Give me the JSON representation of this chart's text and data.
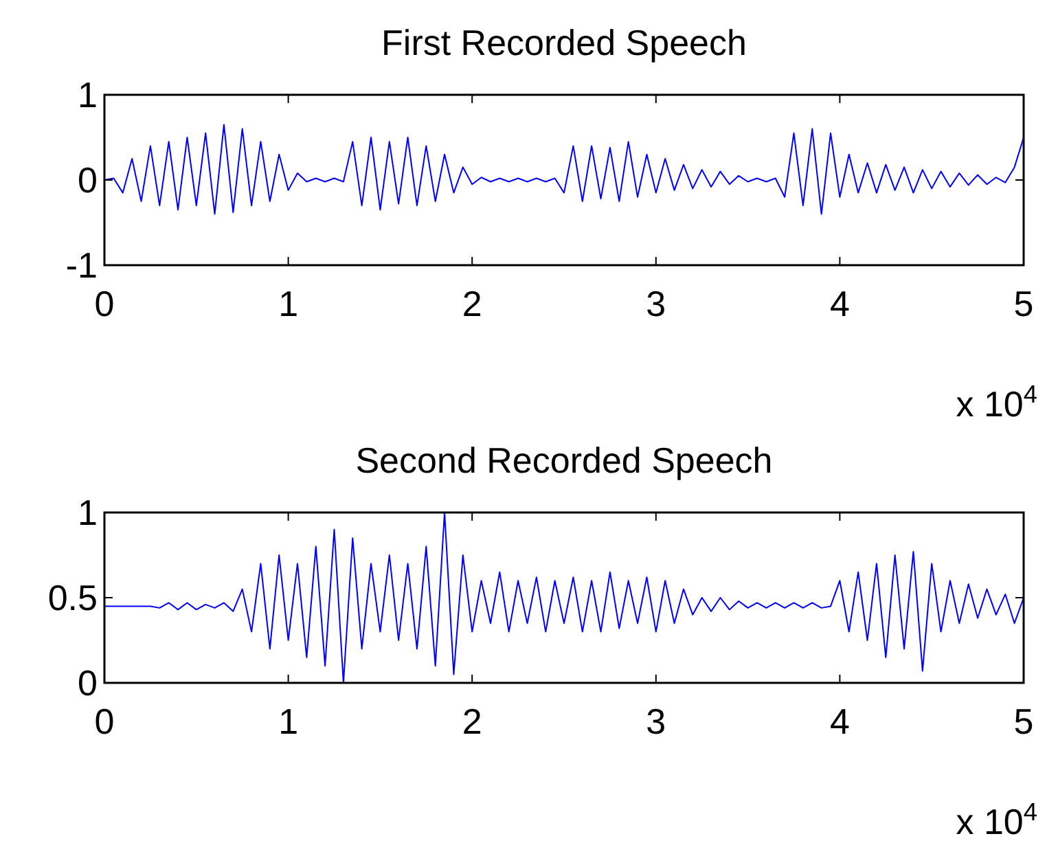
{
  "chart_data": [
    {
      "type": "line",
      "title": "First Recorded Speech",
      "annotations": [
        "x 10$^{4}$"
      ],
      "grid": false,
      "marker": "none",
      "line_style": "solid",
      "xlim": [
        0,
        5
      ],
      "xticks": [
        0,
        1,
        2,
        3,
        4,
        5
      ],
      "ylim": [
        -1,
        1
      ],
      "yticks": [
        -1,
        0,
        1
      ],
      "x": [
        0,
        0.05,
        0.1,
        0.15,
        0.2,
        0.25,
        0.3,
        0.35,
        0.4,
        0.45,
        0.5,
        0.55,
        0.6,
        0.65,
        0.7,
        0.75,
        0.8,
        0.85,
        0.9,
        0.95,
        1,
        1.05,
        1.1,
        1.15,
        1.2,
        1.25,
        1.3,
        1.35,
        1.4,
        1.45,
        1.5,
        1.55,
        1.6,
        1.65,
        1.7,
        1.75,
        1.8,
        1.85,
        1.9,
        1.95,
        2,
        2.05,
        2.1,
        2.15,
        2.2,
        2.25,
        2.3,
        2.35,
        2.4,
        2.45,
        2.5,
        2.55,
        2.6,
        2.65,
        2.7,
        2.75,
        2.8,
        2.85,
        2.9,
        2.95,
        3,
        3.05,
        3.1,
        3.15,
        3.2,
        3.25,
        3.3,
        3.35,
        3.4,
        3.45,
        3.5,
        3.55,
        3.6,
        3.65,
        3.7,
        3.75,
        3.8,
        3.85,
        3.9,
        3.95,
        4,
        4.05,
        4.1,
        4.15,
        4.2,
        4.25,
        4.3,
        4.35,
        4.4,
        4.45,
        4.5,
        4.55,
        4.6,
        4.65,
        4.7,
        4.75,
        4.8,
        4.85,
        4.9,
        4.95,
        5
      ],
      "series": [
        {
          "color": "#0000ff",
          "values": [
            0,
            0.02,
            -0.15,
            0.25,
            -0.25,
            0.4,
            -0.3,
            0.45,
            -0.35,
            0.5,
            -0.3,
            0.55,
            -0.4,
            0.65,
            -0.38,
            0.6,
            -0.3,
            0.45,
            -0.25,
            0.3,
            -0.12,
            0.08,
            -0.02,
            0.02,
            -0.02,
            0.02,
            -0.02,
            0.45,
            -0.3,
            0.5,
            -0.35,
            0.45,
            -0.28,
            0.5,
            -0.3,
            0.4,
            -0.25,
            0.3,
            -0.15,
            0.15,
            -0.05,
            0.03,
            -0.02,
            0.02,
            -0.02,
            0.02,
            -0.02,
            0.02,
            -0.02,
            0.02,
            -0.15,
            0.4,
            -0.25,
            0.4,
            -0.22,
            0.38,
            -0.25,
            0.45,
            -0.2,
            0.3,
            -0.15,
            0.25,
            -0.12,
            0.18,
            -0.1,
            0.12,
            -0.08,
            0.1,
            -0.05,
            0.05,
            -0.02,
            0.02,
            -0.02,
            0.02,
            -0.2,
            0.55,
            -0.3,
            0.6,
            -0.4,
            0.55,
            -0.2,
            0.3,
            -0.15,
            0.2,
            -0.15,
            0.18,
            -0.12,
            0.15,
            -0.15,
            0.12,
            -0.1,
            0.1,
            -0.08,
            0.08,
            -0.06,
            0.06,
            -0.05,
            0.03,
            -0.03,
            0.15,
            0.5
          ]
        }
      ]
    },
    {
      "type": "line",
      "title": "Second Recorded Speech",
      "annotations": [
        "x 10$^{4}$"
      ],
      "grid": false,
      "marker": "none",
      "line_style": "solid",
      "xlim": [
        0,
        5
      ],
      "xticks": [
        0,
        1,
        2,
        3,
        4,
        5
      ],
      "ylim": [
        0,
        1
      ],
      "yticks": [
        0,
        0.5,
        1
      ],
      "x": [
        0,
        0.05,
        0.1,
        0.15,
        0.2,
        0.25,
        0.3,
        0.35,
        0.4,
        0.45,
        0.5,
        0.55,
        0.6,
        0.65,
        0.7,
        0.75,
        0.8,
        0.85,
        0.9,
        0.95,
        1,
        1.05,
        1.1,
        1.15,
        1.2,
        1.25,
        1.3,
        1.35,
        1.4,
        1.45,
        1.5,
        1.55,
        1.6,
        1.65,
        1.7,
        1.75,
        1.8,
        1.85,
        1.9,
        1.95,
        2,
        2.05,
        2.1,
        2.15,
        2.2,
        2.25,
        2.3,
        2.35,
        2.4,
        2.45,
        2.5,
        2.55,
        2.6,
        2.65,
        2.7,
        2.75,
        2.8,
        2.85,
        2.9,
        2.95,
        3,
        3.05,
        3.1,
        3.15,
        3.2,
        3.25,
        3.3,
        3.35,
        3.4,
        3.45,
        3.5,
        3.55,
        3.6,
        3.65,
        3.7,
        3.75,
        3.8,
        3.85,
        3.9,
        3.95,
        4,
        4.05,
        4.1,
        4.15,
        4.2,
        4.25,
        4.3,
        4.35,
        4.4,
        4.45,
        4.5,
        4.55,
        4.6,
        4.65,
        4.7,
        4.75,
        4.8,
        4.85,
        4.9,
        4.95,
        5
      ],
      "series": [
        {
          "color": "#0000ff",
          "values": [
            0.45,
            0.45,
            0.45,
            0.45,
            0.45,
            0.45,
            0.44,
            0.47,
            0.43,
            0.47,
            0.43,
            0.46,
            0.44,
            0.47,
            0.42,
            0.55,
            0.3,
            0.7,
            0.2,
            0.75,
            0.25,
            0.7,
            0.15,
            0.8,
            0.1,
            0.9,
            0,
            0.85,
            0.2,
            0.7,
            0.3,
            0.75,
            0.25,
            0.7,
            0.2,
            0.8,
            0.1,
            1,
            0.05,
            0.75,
            0.3,
            0.6,
            0.35,
            0.65,
            0.3,
            0.6,
            0.35,
            0.62,
            0.3,
            0.6,
            0.35,
            0.62,
            0.3,
            0.6,
            0.3,
            0.65,
            0.32,
            0.6,
            0.35,
            0.62,
            0.3,
            0.6,
            0.35,
            0.55,
            0.4,
            0.5,
            0.42,
            0.5,
            0.43,
            0.48,
            0.44,
            0.47,
            0.44,
            0.47,
            0.44,
            0.47,
            0.44,
            0.47,
            0.44,
            0.45,
            0.6,
            0.3,
            0.65,
            0.25,
            0.7,
            0.15,
            0.75,
            0.2,
            0.77,
            0.07,
            0.7,
            0.3,
            0.6,
            0.35,
            0.58,
            0.38,
            0.55,
            0.4,
            0.52,
            0.35,
            0.5
          ]
        }
      ]
    }
  ]
}
